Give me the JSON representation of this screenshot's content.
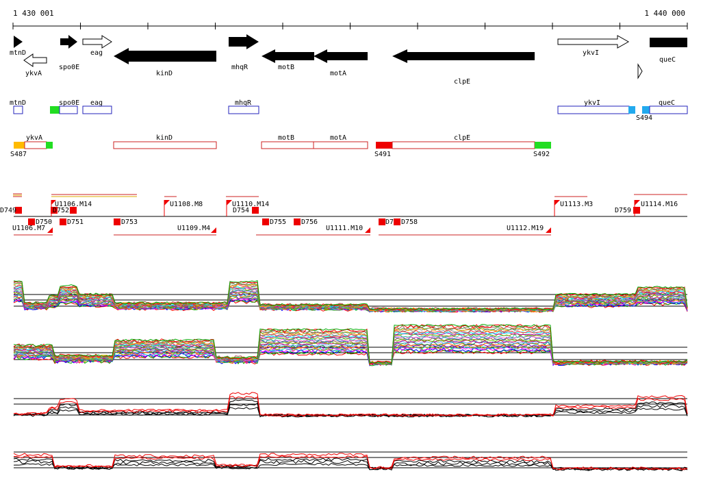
{
  "ruler": {
    "start_label": "1 430 001",
    "end_label": "1 440 000"
  },
  "genes": [
    {
      "name": "mtnD",
      "strand": "+",
      "fill": "black",
      "label_pos": "below"
    },
    {
      "name": "ykvA",
      "strand": "-",
      "fill": "white",
      "label_pos": "below"
    },
    {
      "name": "spo0E",
      "strand": "+",
      "fill": "black",
      "label_pos": "below"
    },
    {
      "name": "eag",
      "strand": "+",
      "fill": "white",
      "label_pos": "below"
    },
    {
      "name": "kinD",
      "strand": "-",
      "fill": "black",
      "label_pos": "below"
    },
    {
      "name": "mhqR",
      "strand": "+",
      "fill": "black",
      "label_pos": "below"
    },
    {
      "name": "motB",
      "strand": "-",
      "fill": "black",
      "label_pos": "below"
    },
    {
      "name": "motA",
      "strand": "-",
      "fill": "black",
      "label_pos": "below"
    },
    {
      "name": "clpE",
      "strand": "-",
      "fill": "black",
      "label_pos": "below"
    },
    {
      "name": "ykvI",
      "strand": "+",
      "fill": "white",
      "label_pos": "above"
    },
    {
      "name": "queC",
      "strand": "+",
      "fill": "black",
      "label_pos": "below"
    }
  ],
  "annot_forward": [
    {
      "label": "mtnD"
    },
    {
      "label": "spo0E"
    },
    {
      "label": "eag"
    },
    {
      "label": "mhqR"
    },
    {
      "label": "ykvI"
    },
    {
      "label": "queC"
    }
  ],
  "annot_forward_sites": [
    {
      "label": "",
      "color": "#22dd22"
    },
    {
      "label": "S494",
      "color": "#22aaee"
    }
  ],
  "annot_reverse": [
    {
      "label": "ykvA"
    },
    {
      "label": "kinD"
    },
    {
      "label": "motB"
    },
    {
      "label": "motA"
    },
    {
      "label": "clpE"
    }
  ],
  "annot_reverse_sites": [
    {
      "label": "S487",
      "color": "#ffbb00"
    },
    {
      "label": "",
      "color": "#22dd22"
    },
    {
      "label": "S491",
      "color": "#ee0000"
    },
    {
      "label": "S492",
      "color": "#22dd22"
    }
  ],
  "features_top": [
    {
      "label": "D749"
    },
    {
      "label": "U1106.M14"
    },
    {
      "label": "D752"
    },
    {
      "label": "U1108.M8"
    },
    {
      "label": "U1110.M14"
    },
    {
      "label": "D754"
    },
    {
      "label": "U1113.M3"
    },
    {
      "label": "D759"
    },
    {
      "label": "U1114.M16"
    }
  ],
  "features_bottom": [
    {
      "label": "U1106.M7"
    },
    {
      "label": "D750"
    },
    {
      "label": "D751"
    },
    {
      "label": "D753"
    },
    {
      "label": "U1109.M4"
    },
    {
      "label": "D755"
    },
    {
      "label": "D756"
    },
    {
      "label": "U1111.M10"
    },
    {
      "label": "D7"
    },
    {
      "label": "D758"
    },
    {
      "label": "U1112.M19"
    }
  ],
  "colors": {
    "gene": "#000000",
    "forward_box": "#2222bb",
    "reverse_box": "#cc2222",
    "feature": "#ee0000"
  }
}
